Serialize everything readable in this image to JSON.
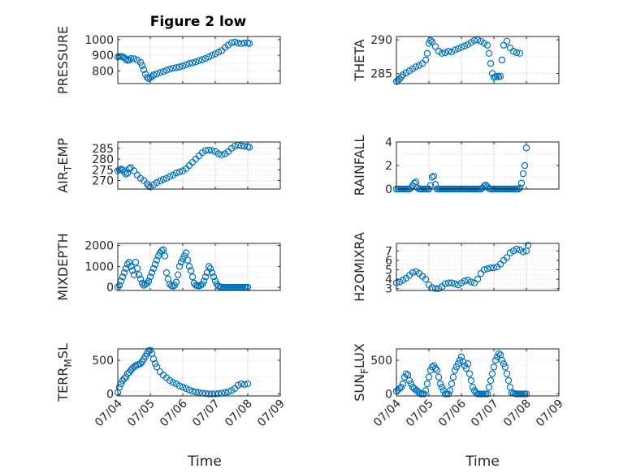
{
  "figure_title": "Figure 2 low",
  "colors": {
    "marker": "#0072bd",
    "axes": "#262626",
    "grid": "#d9d9d9"
  },
  "x_ticks": [
    "07/04",
    "07/05",
    "07/06",
    "07/07",
    "07/08",
    "07/09"
  ],
  "xlabel": "Time",
  "chart_data": [
    {
      "type": "scatter",
      "ylabel": "PRESSURE",
      "ylim": [
        720,
        1020
      ],
      "yticks": [
        800,
        900,
        1000
      ],
      "ytick_labels": [
        "800",
        "900",
        "1000"
      ],
      "grid": true,
      "x": [
        0,
        0.05,
        0.1,
        0.15,
        0.2,
        0.25,
        0.3,
        0.35,
        0.4,
        0.5,
        0.6,
        0.7,
        0.75,
        0.8,
        0.85,
        0.9,
        0.95,
        1.0,
        1.05,
        1.1,
        1.2,
        1.3,
        1.4,
        1.5,
        1.6,
        1.7,
        1.8,
        1.9,
        2.0,
        2.1,
        2.2,
        2.3,
        2.4,
        2.5,
        2.6,
        2.7,
        2.8,
        2.9,
        3.0,
        3.1,
        3.2,
        3.3,
        3.4,
        3.5,
        3.6,
        3.7,
        3.8,
        3.9,
        4.0,
        4.05
      ],
      "y": [
        890,
        892,
        893,
        890,
        885,
        875,
        868,
        870,
        880,
        878,
        870,
        855,
        835,
        808,
        780,
        760,
        752,
        758,
        765,
        775,
        782,
        790,
        797,
        805,
        812,
        818,
        822,
        826,
        832,
        840,
        848,
        852,
        858,
        866,
        872,
        880,
        890,
        900,
        910,
        920,
        930,
        950,
        965,
        980,
        985,
        978,
        975,
        978,
        980,
        975
      ]
    },
    {
      "type": "scatter",
      "ylabel": "THETA",
      "ylim": [
        283.5,
        290.5
      ],
      "yticks": [
        285,
        290
      ],
      "ytick_labels": [
        "285",
        "290"
      ],
      "grid": true,
      "x": [
        0,
        0.05,
        0.1,
        0.15,
        0.2,
        0.3,
        0.4,
        0.5,
        0.6,
        0.7,
        0.8,
        0.9,
        0.95,
        1.0,
        1.05,
        1.1,
        1.2,
        1.3,
        1.4,
        1.5,
        1.6,
        1.7,
        1.8,
        1.9,
        2.0,
        2.1,
        2.2,
        2.3,
        2.4,
        2.5,
        2.6,
        2.7,
        2.8,
        2.85,
        2.9,
        2.95,
        3.0,
        3.05,
        3.1,
        3.15,
        3.2,
        3.25,
        3.3,
        3.4,
        3.5,
        3.6,
        3.7,
        3.8
      ],
      "y": [
        283.8,
        284.0,
        284.2,
        284.5,
        284.8,
        285.1,
        285.4,
        285.7,
        286.0,
        286.2,
        286.5,
        287.0,
        288.0,
        289.5,
        289.9,
        289.7,
        289.0,
        288.3,
        288.0,
        288.1,
        288.3,
        288.2,
        288.5,
        288.7,
        288.9,
        289.1,
        289.3,
        289.6,
        289.9,
        290.0,
        289.8,
        289.5,
        289.2,
        288.0,
        286.5,
        285.0,
        284.4,
        284.5,
        284.6,
        284.5,
        284.6,
        287.0,
        289.2,
        289.8,
        288.8,
        288.3,
        288.1,
        288.0
      ]
    },
    {
      "type": "scatter",
      "ylabel": "AIR_TEMP",
      "ylim": [
        266,
        288
      ],
      "yticks": [
        270,
        275,
        280,
        285
      ],
      "ytick_labels": [
        "270",
        "275",
        "280",
        "285"
      ],
      "grid": true,
      "x": [
        0,
        0.05,
        0.1,
        0.15,
        0.2,
        0.25,
        0.3,
        0.35,
        0.4,
        0.5,
        0.6,
        0.7,
        0.8,
        0.9,
        0.95,
        1.0,
        1.1,
        1.2,
        1.3,
        1.4,
        1.5,
        1.6,
        1.7,
        1.8,
        1.9,
        2.0,
        2.1,
        2.2,
        2.3,
        2.4,
        2.5,
        2.6,
        2.7,
        2.8,
        2.9,
        3.0,
        3.1,
        3.2,
        3.3,
        3.4,
        3.5,
        3.6,
        3.7,
        3.8,
        3.9,
        4.0,
        4.05
      ],
      "y": [
        274.5,
        275.0,
        275.3,
        275.0,
        274.0,
        273.0,
        273.5,
        275.5,
        276.0,
        274.5,
        272.5,
        271.0,
        270.0,
        268.5,
        267.5,
        267.0,
        268.0,
        269.0,
        269.8,
        270.5,
        271.0,
        271.8,
        272.5,
        273.5,
        274.0,
        274.5,
        275.5,
        277.0,
        278.5,
        280.0,
        281.5,
        283.0,
        284.0,
        284.2,
        284.0,
        283.5,
        282.5,
        282.0,
        282.5,
        283.5,
        285.0,
        286.0,
        286.5,
        286.2,
        286.0,
        285.8,
        285.5
      ]
    },
    {
      "type": "scatter",
      "ylabel": "RAINFALL",
      "ylim": [
        0,
        4
      ],
      "yticks": [
        0,
        2,
        4
      ],
      "ytick_labels": [
        "0",
        "2",
        "4"
      ],
      "grid": true,
      "x": [
        0,
        0.05,
        0.1,
        0.15,
        0.2,
        0.25,
        0.3,
        0.35,
        0.4,
        0.45,
        0.5,
        0.55,
        0.6,
        0.65,
        0.7,
        0.75,
        0.8,
        0.85,
        0.9,
        0.95,
        1.0,
        1.05,
        1.1,
        1.15,
        1.2,
        1.25,
        1.3,
        1.35,
        1.4,
        1.45,
        1.5,
        1.55,
        1.6,
        1.65,
        1.7,
        1.75,
        1.8,
        1.85,
        1.9,
        1.95,
        2.0,
        2.05,
        2.1,
        2.15,
        2.2,
        2.25,
        2.3,
        2.35,
        2.4,
        2.45,
        2.5,
        2.55,
        2.6,
        2.65,
        2.7,
        2.75,
        2.8,
        2.85,
        2.9,
        2.95,
        3.0,
        3.05,
        3.1,
        3.15,
        3.2,
        3.25,
        3.3,
        3.35,
        3.4,
        3.45,
        3.5,
        3.55,
        3.6,
        3.65,
        3.7,
        3.75,
        3.8,
        3.85,
        3.9,
        3.95,
        4.0
      ],
      "y": [
        0,
        0,
        0,
        0,
        0,
        0,
        0,
        0,
        0,
        0.1,
        0.3,
        0.5,
        0.6,
        0.1,
        0,
        0,
        0,
        0,
        0,
        0,
        0,
        0.3,
        1.0,
        1.1,
        0.4,
        0,
        0,
        0,
        0,
        0,
        0,
        0,
        0,
        0,
        0,
        0,
        0,
        0,
        0,
        0,
        0,
        0,
        0,
        0,
        0,
        0,
        0,
        0,
        0,
        0,
        0,
        0,
        0,
        0.1,
        0.25,
        0.35,
        0.2,
        0.05,
        0,
        0,
        0,
        0,
        0,
        0,
        0,
        0,
        0,
        0,
        0,
        0,
        0,
        0,
        0,
        0,
        0,
        0,
        0.1,
        0.5,
        1.3,
        2.0,
        3.5
      ]
    },
    {
      "type": "scatter",
      "ylabel": "MIXDEPTH",
      "ylim": [
        -150,
        2100
      ],
      "yticks": [
        0,
        1000,
        2000
      ],
      "ytick_labels": [
        "0",
        "1000",
        "2000"
      ],
      "grid": true,
      "x": [
        0,
        0.05,
        0.1,
        0.15,
        0.2,
        0.25,
        0.3,
        0.35,
        0.4,
        0.45,
        0.5,
        0.55,
        0.6,
        0.65,
        0.7,
        0.75,
        0.8,
        0.85,
        0.9,
        0.95,
        1.0,
        1.05,
        1.1,
        1.15,
        1.2,
        1.25,
        1.3,
        1.35,
        1.4,
        1.45,
        1.5,
        1.55,
        1.6,
        1.65,
        1.7,
        1.75,
        1.8,
        1.85,
        1.9,
        1.95,
        2.0,
        2.05,
        2.1,
        2.15,
        2.2,
        2.25,
        2.3,
        2.35,
        2.4,
        2.45,
        2.5,
        2.55,
        2.6,
        2.65,
        2.7,
        2.75,
        2.8,
        2.85,
        2.9,
        2.95,
        3.0,
        3.05,
        3.1,
        3.15,
        3.2,
        3.25,
        3.3,
        3.35,
        3.4,
        3.45,
        3.5,
        3.55,
        3.6,
        3.65,
        3.7,
        3.75,
        3.8,
        3.85,
        3.9,
        3.95,
        4.0
      ],
      "y": [
        0,
        100,
        300,
        500,
        700,
        900,
        1100,
        1200,
        1000,
        800,
        600,
        1200,
        900,
        600,
        400,
        200,
        100,
        150,
        200,
        300,
        500,
        700,
        900,
        1100,
        1300,
        1500,
        1650,
        1750,
        1800,
        1500,
        700,
        400,
        150,
        80,
        50,
        100,
        250,
        600,
        1000,
        1200,
        1350,
        1500,
        1650,
        1300,
        1000,
        800,
        500,
        200,
        100,
        80,
        60,
        100,
        150,
        300,
        500,
        700,
        1000,
        900,
        700,
        500,
        300,
        150,
        50,
        20,
        10,
        0,
        0,
        0,
        0,
        0,
        0,
        0,
        0,
        0,
        0,
        0,
        0,
        0,
        0,
        0,
        0
      ]
    },
    {
      "type": "scatter",
      "ylabel": "H2OMIXRA",
      "ylim": [
        2.8,
        7.8
      ],
      "yticks": [
        3,
        4,
        5,
        6,
        7
      ],
      "ytick_labels": [
        "3",
        "4",
        "5",
        "6",
        "7"
      ],
      "grid": true,
      "x": [
        0,
        0.1,
        0.2,
        0.3,
        0.4,
        0.5,
        0.6,
        0.7,
        0.8,
        0.9,
        1.0,
        1.1,
        1.2,
        1.3,
        1.4,
        1.5,
        1.6,
        1.7,
        1.8,
        1.9,
        2.0,
        2.1,
        2.2,
        2.3,
        2.4,
        2.5,
        2.6,
        2.7,
        2.8,
        2.9,
        3.0,
        3.1,
        3.2,
        3.3,
        3.4,
        3.5,
        3.6,
        3.7,
        3.8,
        3.9,
        4.0,
        4.05
      ],
      "y": [
        3.6,
        3.7,
        3.9,
        4.1,
        4.4,
        4.7,
        4.8,
        4.6,
        4.3,
        4.0,
        3.4,
        3.1,
        3.0,
        3.0,
        3.2,
        3.5,
        3.6,
        3.6,
        3.5,
        3.4,
        3.6,
        3.8,
        3.9,
        3.7,
        3.6,
        4.0,
        4.6,
        5.0,
        5.1,
        5.2,
        5.2,
        5.3,
        5.6,
        6.0,
        6.3,
        6.8,
        7.0,
        7.2,
        7.1,
        6.9,
        7.0,
        7.6
      ]
    },
    {
      "type": "scatter",
      "ylabel": "TERR_MSL",
      "ylim": [
        -30,
        670
      ],
      "yticks": [
        0,
        500
      ],
      "ytick_labels": [
        "0",
        "500"
      ],
      "grid": true,
      "x": [
        0,
        0.05,
        0.1,
        0.15,
        0.2,
        0.25,
        0.3,
        0.35,
        0.4,
        0.45,
        0.5,
        0.55,
        0.6,
        0.65,
        0.7,
        0.75,
        0.8,
        0.85,
        0.9,
        0.95,
        1.0,
        1.05,
        1.1,
        1.15,
        1.2,
        1.3,
        1.4,
        1.5,
        1.6,
        1.7,
        1.8,
        1.9,
        2.0,
        2.1,
        2.2,
        2.3,
        2.4,
        2.5,
        2.6,
        2.7,
        2.8,
        2.9,
        3.0,
        3.1,
        3.2,
        3.3,
        3.4,
        3.5,
        3.6,
        3.7,
        3.8,
        3.9,
        4.0
      ],
      "y": [
        20,
        100,
        150,
        200,
        230,
        250,
        300,
        320,
        350,
        380,
        400,
        420,
        430,
        440,
        450,
        480,
        520,
        560,
        600,
        640,
        650,
        600,
        520,
        450,
        400,
        330,
        280,
        240,
        200,
        170,
        150,
        120,
        100,
        80,
        60,
        40,
        30,
        20,
        10,
        5,
        0,
        0,
        0,
        5,
        10,
        20,
        30,
        50,
        80,
        130,
        150,
        140,
        150
      ]
    },
    {
      "type": "scatter",
      "ylabel": "SUN_FLUX",
      "ylim": [
        -30,
        670
      ],
      "yticks": [
        0,
        500
      ],
      "ytick_labels": [
        "0",
        "500"
      ],
      "grid": true,
      "x": [
        0,
        0.05,
        0.1,
        0.15,
        0.2,
        0.25,
        0.3,
        0.35,
        0.4,
        0.45,
        0.5,
        0.55,
        0.6,
        0.65,
        0.7,
        0.75,
        0.8,
        0.85,
        0.9,
        0.95,
        1.0,
        1.05,
        1.1,
        1.15,
        1.2,
        1.25,
        1.3,
        1.35,
        1.4,
        1.45,
        1.5,
        1.55,
        1.6,
        1.65,
        1.7,
        1.75,
        1.8,
        1.85,
        1.9,
        1.95,
        2.0,
        2.05,
        2.1,
        2.15,
        2.2,
        2.25,
        2.3,
        2.35,
        2.4,
        2.45,
        2.5,
        2.55,
        2.6,
        2.65,
        2.7,
        2.75,
        2.8,
        2.85,
        2.9,
        2.95,
        3.0,
        3.05,
        3.1,
        3.15,
        3.2,
        3.25,
        3.3,
        3.35,
        3.4,
        3.45,
        3.5,
        3.55,
        3.6,
        3.65,
        3.7,
        3.75,
        3.8,
        3.85,
        3.9,
        3.95,
        4.0
      ],
      "y": [
        40,
        60,
        80,
        100,
        150,
        250,
        300,
        280,
        200,
        150,
        100,
        80,
        60,
        40,
        20,
        0,
        0,
        0,
        50,
        150,
        250,
        350,
        400,
        420,
        380,
        350,
        250,
        150,
        100,
        50,
        0,
        0,
        0,
        50,
        150,
        250,
        350,
        400,
        450,
        500,
        550,
        480,
        420,
        380,
        450,
        300,
        200,
        100,
        50,
        20,
        0,
        0,
        0,
        0,
        0,
        0,
        0,
        100,
        200,
        300,
        400,
        500,
        550,
        600,
        580,
        500,
        450,
        400,
        300,
        200,
        100,
        20,
        10,
        5,
        0,
        0,
        0,
        0,
        0,
        0,
        0
      ]
    }
  ]
}
